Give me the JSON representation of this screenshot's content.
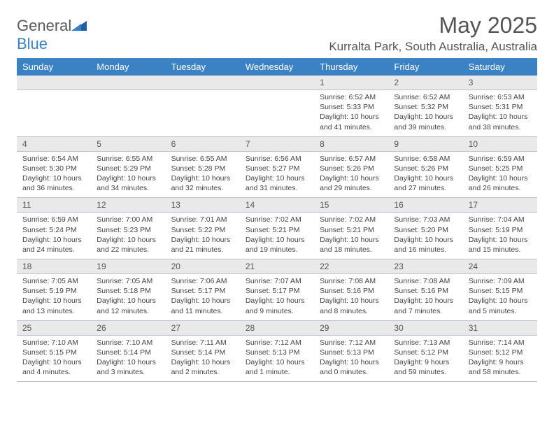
{
  "brand": {
    "part1": "General",
    "part2": "Blue"
  },
  "title": {
    "month": "May 2025",
    "location": "Kurralta Park, South Australia, Australia"
  },
  "colors": {
    "header_bg": "#3b82c4",
    "daynum_bg": "#e9e9e9",
    "text": "#555555",
    "cell_text": "#444444",
    "divider": "#b8c5d0",
    "brand_blue": "#3b7fc4"
  },
  "columns": [
    "Sunday",
    "Monday",
    "Tuesday",
    "Wednesday",
    "Thursday",
    "Friday",
    "Saturday"
  ],
  "weeks": [
    {
      "nums": [
        "",
        "",
        "",
        "",
        "1",
        "2",
        "3"
      ],
      "cells": [
        null,
        null,
        null,
        null,
        {
          "sunrise": "6:52 AM",
          "sunset": "5:33 PM",
          "daylight": "10 hours and 41 minutes."
        },
        {
          "sunrise": "6:52 AM",
          "sunset": "5:32 PM",
          "daylight": "10 hours and 39 minutes."
        },
        {
          "sunrise": "6:53 AM",
          "sunset": "5:31 PM",
          "daylight": "10 hours and 38 minutes."
        }
      ]
    },
    {
      "nums": [
        "4",
        "5",
        "6",
        "7",
        "8",
        "9",
        "10"
      ],
      "cells": [
        {
          "sunrise": "6:54 AM",
          "sunset": "5:30 PM",
          "daylight": "10 hours and 36 minutes."
        },
        {
          "sunrise": "6:55 AM",
          "sunset": "5:29 PM",
          "daylight": "10 hours and 34 minutes."
        },
        {
          "sunrise": "6:55 AM",
          "sunset": "5:28 PM",
          "daylight": "10 hours and 32 minutes."
        },
        {
          "sunrise": "6:56 AM",
          "sunset": "5:27 PM",
          "daylight": "10 hours and 31 minutes."
        },
        {
          "sunrise": "6:57 AM",
          "sunset": "5:26 PM",
          "daylight": "10 hours and 29 minutes."
        },
        {
          "sunrise": "6:58 AM",
          "sunset": "5:26 PM",
          "daylight": "10 hours and 27 minutes."
        },
        {
          "sunrise": "6:59 AM",
          "sunset": "5:25 PM",
          "daylight": "10 hours and 26 minutes."
        }
      ]
    },
    {
      "nums": [
        "11",
        "12",
        "13",
        "14",
        "15",
        "16",
        "17"
      ],
      "cells": [
        {
          "sunrise": "6:59 AM",
          "sunset": "5:24 PM",
          "daylight": "10 hours and 24 minutes."
        },
        {
          "sunrise": "7:00 AM",
          "sunset": "5:23 PM",
          "daylight": "10 hours and 22 minutes."
        },
        {
          "sunrise": "7:01 AM",
          "sunset": "5:22 PM",
          "daylight": "10 hours and 21 minutes."
        },
        {
          "sunrise": "7:02 AM",
          "sunset": "5:21 PM",
          "daylight": "10 hours and 19 minutes."
        },
        {
          "sunrise": "7:02 AM",
          "sunset": "5:21 PM",
          "daylight": "10 hours and 18 minutes."
        },
        {
          "sunrise": "7:03 AM",
          "sunset": "5:20 PM",
          "daylight": "10 hours and 16 minutes."
        },
        {
          "sunrise": "7:04 AM",
          "sunset": "5:19 PM",
          "daylight": "10 hours and 15 minutes."
        }
      ]
    },
    {
      "nums": [
        "18",
        "19",
        "20",
        "21",
        "22",
        "23",
        "24"
      ],
      "cells": [
        {
          "sunrise": "7:05 AM",
          "sunset": "5:19 PM",
          "daylight": "10 hours and 13 minutes."
        },
        {
          "sunrise": "7:05 AM",
          "sunset": "5:18 PM",
          "daylight": "10 hours and 12 minutes."
        },
        {
          "sunrise": "7:06 AM",
          "sunset": "5:17 PM",
          "daylight": "10 hours and 11 minutes."
        },
        {
          "sunrise": "7:07 AM",
          "sunset": "5:17 PM",
          "daylight": "10 hours and 9 minutes."
        },
        {
          "sunrise": "7:08 AM",
          "sunset": "5:16 PM",
          "daylight": "10 hours and 8 minutes."
        },
        {
          "sunrise": "7:08 AM",
          "sunset": "5:16 PM",
          "daylight": "10 hours and 7 minutes."
        },
        {
          "sunrise": "7:09 AM",
          "sunset": "5:15 PM",
          "daylight": "10 hours and 5 minutes."
        }
      ]
    },
    {
      "nums": [
        "25",
        "26",
        "27",
        "28",
        "29",
        "30",
        "31"
      ],
      "cells": [
        {
          "sunrise": "7:10 AM",
          "sunset": "5:15 PM",
          "daylight": "10 hours and 4 minutes."
        },
        {
          "sunrise": "7:10 AM",
          "sunset": "5:14 PM",
          "daylight": "10 hours and 3 minutes."
        },
        {
          "sunrise": "7:11 AM",
          "sunset": "5:14 PM",
          "daylight": "10 hours and 2 minutes."
        },
        {
          "sunrise": "7:12 AM",
          "sunset": "5:13 PM",
          "daylight": "10 hours and 1 minute."
        },
        {
          "sunrise": "7:12 AM",
          "sunset": "5:13 PM",
          "daylight": "10 hours and 0 minutes."
        },
        {
          "sunrise": "7:13 AM",
          "sunset": "5:12 PM",
          "daylight": "9 hours and 59 minutes."
        },
        {
          "sunrise": "7:14 AM",
          "sunset": "5:12 PM",
          "daylight": "9 hours and 58 minutes."
        }
      ]
    }
  ],
  "labels": {
    "sunrise": "Sunrise: ",
    "sunset": "Sunset: ",
    "daylight": "Daylight: "
  }
}
